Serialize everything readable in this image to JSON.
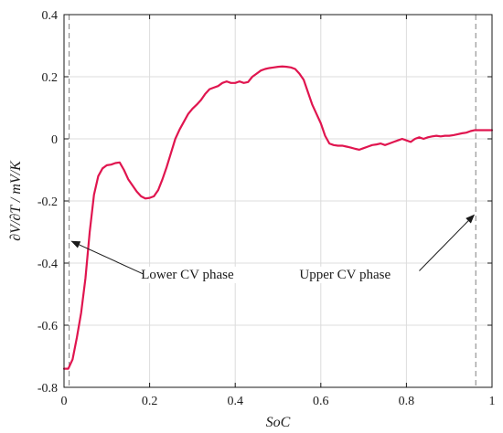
{
  "chart_data": {
    "type": "line",
    "title": "",
    "xlabel": "SoC",
    "ylabel": "∂V/∂T / mV/K",
    "xlim": [
      0,
      1
    ],
    "ylim": [
      -0.8,
      0.4
    ],
    "xticks": [
      0,
      0.2,
      0.4,
      0.6,
      0.8,
      1
    ],
    "xtick_labels": [
      "0",
      "0.2",
      "0.4",
      "0.6",
      "0.8",
      "1"
    ],
    "yticks": [
      -0.8,
      -0.6,
      -0.4,
      -0.2,
      0,
      0.2,
      0.4
    ],
    "ytick_labels": [
      "-0.8",
      "-0.6",
      "-0.4",
      "-0.2",
      "0",
      "0.2",
      "0.4"
    ],
    "grid": true,
    "legend": "none",
    "line_color": "#e0154f",
    "series": [
      {
        "x": [
          0.0,
          0.01,
          0.02,
          0.03,
          0.04,
          0.05,
          0.06,
          0.07,
          0.08,
          0.09,
          0.1,
          0.11,
          0.12,
          0.13,
          0.14,
          0.15,
          0.16,
          0.17,
          0.18,
          0.19,
          0.2,
          0.21,
          0.22,
          0.23,
          0.24,
          0.25,
          0.26,
          0.27,
          0.28,
          0.29,
          0.3,
          0.31,
          0.32,
          0.33,
          0.34,
          0.35,
          0.36,
          0.37,
          0.38,
          0.39,
          0.4,
          0.41,
          0.42,
          0.43,
          0.44,
          0.45,
          0.46,
          0.47,
          0.48,
          0.49,
          0.5,
          0.51,
          0.52,
          0.53,
          0.54,
          0.55,
          0.56,
          0.57,
          0.58,
          0.59,
          0.6,
          0.61,
          0.62,
          0.63,
          0.64,
          0.65,
          0.66,
          0.67,
          0.68,
          0.69,
          0.7,
          0.71,
          0.72,
          0.73,
          0.74,
          0.75,
          0.76,
          0.77,
          0.78,
          0.79,
          0.8,
          0.81,
          0.82,
          0.83,
          0.84,
          0.85,
          0.86,
          0.87,
          0.88,
          0.89,
          0.9,
          0.91,
          0.92,
          0.93,
          0.94,
          0.95,
          0.96,
          0.97,
          0.98,
          0.99,
          1.0
        ],
        "values": [
          -0.74,
          -0.74,
          -0.71,
          -0.64,
          -0.56,
          -0.45,
          -0.3,
          -0.18,
          -0.12,
          -0.095,
          -0.085,
          -0.083,
          -0.078,
          -0.076,
          -0.1,
          -0.13,
          -0.15,
          -0.17,
          -0.185,
          -0.192,
          -0.19,
          -0.185,
          -0.165,
          -0.13,
          -0.09,
          -0.045,
          0.0,
          0.03,
          0.055,
          0.08,
          0.097,
          0.11,
          0.125,
          0.145,
          0.16,
          0.165,
          0.17,
          0.18,
          0.185,
          0.18,
          0.18,
          0.185,
          0.18,
          0.183,
          0.2,
          0.21,
          0.22,
          0.225,
          0.228,
          0.23,
          0.232,
          0.233,
          0.232,
          0.23,
          0.225,
          0.21,
          0.19,
          0.15,
          0.11,
          0.08,
          0.05,
          0.01,
          -0.015,
          -0.02,
          -0.022,
          -0.022,
          -0.025,
          -0.028,
          -0.032,
          -0.035,
          -0.03,
          -0.025,
          -0.02,
          -0.018,
          -0.015,
          -0.02,
          -0.015,
          -0.01,
          -0.005,
          0.0,
          -0.005,
          -0.01,
          0.0,
          0.005,
          0.0,
          0.005,
          0.008,
          0.01,
          0.008,
          0.01,
          0.01,
          0.012,
          0.015,
          0.018,
          0.02,
          0.025,
          0.028,
          0.028,
          0.028,
          0.028,
          0.028
        ]
      }
    ],
    "markers": [
      {
        "x": 0.012
      },
      {
        "x": 0.962
      }
    ],
    "annotations": [
      {
        "text": "Lower CV phase",
        "text_x": 0.18,
        "text_y": -0.435,
        "arrow_to_x": 0.018,
        "arrow_to_y": -0.33,
        "arrow_from_x": 0.185,
        "arrow_from_y": -0.435,
        "anchor": "start"
      },
      {
        "text": "Upper CV phase",
        "text_x": 0.55,
        "text_y": -0.435,
        "arrow_to_x": 0.958,
        "arrow_to_y": -0.245,
        "arrow_from_x": 0.83,
        "arrow_from_y": -0.425,
        "anchor": "start"
      }
    ]
  }
}
